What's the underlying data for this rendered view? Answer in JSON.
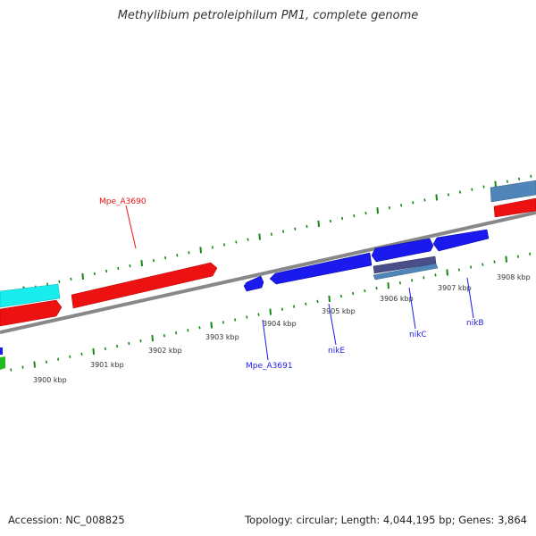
{
  "title": "Methylibium petroleiphilum PM1, complete genome",
  "footer": {
    "accession": "Accession: NC_008825",
    "stats": "Topology: circular; Length: 4,044,195 bp; Genes: 3,864"
  },
  "colors": {
    "red": "#ee1111",
    "blue": "#1a1aee",
    "cyan": "#19ecec",
    "steel": "#4f85b8",
    "slate": "#4a4f8a",
    "green": "#22bb22",
    "backbone": "#888888",
    "tick": "#138a13"
  },
  "scale_labels": [
    "3900 kbp",
    "3901 kbp",
    "3902 kbp",
    "3903 kbp",
    "3904 kbp",
    "3905 kbp",
    "3906 kbp",
    "3907 kbp",
    "3908 kbp"
  ],
  "gene_labels": [
    {
      "text": "Mpe_A3690",
      "color": "#ee1111"
    },
    {
      "text": "Mpe_A3691",
      "color": "#1a1aee"
    },
    {
      "text": "nikE",
      "color": "#1a1aee"
    },
    {
      "text": "nikC",
      "color": "#1a1aee"
    },
    {
      "text": "nikB",
      "color": "#1a1aee"
    }
  ]
}
